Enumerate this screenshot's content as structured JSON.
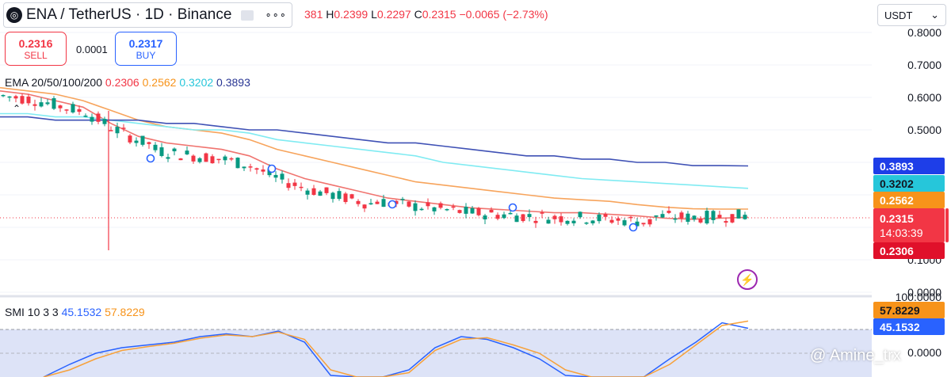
{
  "header": {
    "symbol": "ENA / TetherUS · 1D · Binance",
    "ohlc": {
      "o_tail": "381",
      "h_label": "H",
      "h": "0.2399",
      "l_label": "L",
      "l": "0.2297",
      "c_label": "C",
      "c": "0.2315",
      "change": "−0.0065 (−2.73%)"
    }
  },
  "trade": {
    "sell_price": "0.2316",
    "sell_label": "SELL",
    "spread": "0.0001",
    "buy_price": "0.2317",
    "buy_label": "BUY"
  },
  "currency": "USDT",
  "ema_legend": {
    "name": "EMA 20/50/100/200",
    "v20": "0.2306",
    "v50": "0.2562",
    "v100": "0.3202",
    "v200": "0.3893"
  },
  "smi_legend": {
    "name": "SMI 10 3 3",
    "v1": "45.1532",
    "v2": "57.8229"
  },
  "price_axis": {
    "ticks": [
      "0.8000",
      "0.7000",
      "0.6000",
      "0.5000",
      "0.1000",
      "0.0000"
    ],
    "tags": {
      "ema200": "0.3893",
      "ema100": "0.3202",
      "ema50": "0.2562",
      "price": "0.2315",
      "countdown": "14:03:39",
      "ema20": "0.2306"
    }
  },
  "smi_axis": {
    "ticks": [
      "100.0000",
      "0.0000"
    ],
    "tags": {
      "v2": "57.8229",
      "v1": "45.1532"
    }
  },
  "watermark": "@ Amine_trx",
  "colors": {
    "up": "#089981",
    "down": "#f23645",
    "ema20": "#f0746f",
    "ema50": "#f7a45c",
    "ema100": "#80ebf2",
    "ema200": "#3f51b5",
    "smi1": "#2962ff",
    "smi2": "#f7a13a"
  },
  "chart_data": [
    {
      "type": "line",
      "title": "ENA / TetherUS · 1D · Binance",
      "ylim": [
        0.0,
        0.85
      ],
      "series": [
        {
          "name": "EMA 20",
          "values": [
            0.62,
            0.61,
            0.59,
            0.57,
            0.52,
            0.48,
            0.46,
            0.45,
            0.44,
            0.42,
            0.38,
            0.35,
            0.33,
            0.31,
            0.29,
            0.28,
            0.27,
            0.26,
            0.255,
            0.25,
            0.245,
            0.245,
            0.24,
            0.235,
            0.228,
            0.225,
            0.228,
            0.231
          ]
        },
        {
          "name": "EMA 50",
          "values": [
            0.63,
            0.62,
            0.61,
            0.59,
            0.56,
            0.53,
            0.51,
            0.5,
            0.49,
            0.47,
            0.44,
            0.42,
            0.4,
            0.38,
            0.36,
            0.34,
            0.33,
            0.32,
            0.31,
            0.3,
            0.29,
            0.285,
            0.28,
            0.27,
            0.262,
            0.257,
            0.256,
            0.256
          ]
        },
        {
          "name": "EMA 100",
          "values": [
            0.55,
            0.55,
            0.54,
            0.54,
            0.53,
            0.52,
            0.51,
            0.5,
            0.5,
            0.49,
            0.47,
            0.46,
            0.45,
            0.44,
            0.43,
            0.42,
            0.4,
            0.39,
            0.38,
            0.37,
            0.36,
            0.35,
            0.345,
            0.34,
            0.335,
            0.33,
            0.325,
            0.32
          ]
        },
        {
          "name": "EMA 200",
          "values": [
            0.54,
            0.54,
            0.53,
            0.53,
            0.53,
            0.53,
            0.52,
            0.52,
            0.51,
            0.5,
            0.5,
            0.49,
            0.48,
            0.47,
            0.46,
            0.46,
            0.45,
            0.44,
            0.43,
            0.42,
            0.42,
            0.41,
            0.41,
            0.4,
            0.4,
            0.39,
            0.39,
            0.389
          ]
        }
      ]
    },
    {
      "type": "line",
      "title": "SMI 10 3 3",
      "ylim": [
        -60,
        100
      ],
      "series": [
        {
          "name": "",
          "values": [
            -60,
            -20,
            0,
            10,
            15,
            20,
            30,
            35,
            30,
            40,
            20,
            -40,
            -70,
            -60,
            -30,
            10,
            30,
            25,
            10,
            -10,
            -40,
            -60,
            -70,
            -60,
            -10,
            20,
            55,
            45
          ]
        },
        {
          "name": "",
          "values": [
            -60,
            -30,
            -10,
            5,
            12,
            18,
            27,
            33,
            30,
            38,
            25,
            -30,
            -65,
            -60,
            -35,
            5,
            25,
            28,
            15,
            0,
            -30,
            -55,
            -65,
            -60,
            -20,
            15,
            50,
            58
          ]
        }
      ]
    }
  ]
}
